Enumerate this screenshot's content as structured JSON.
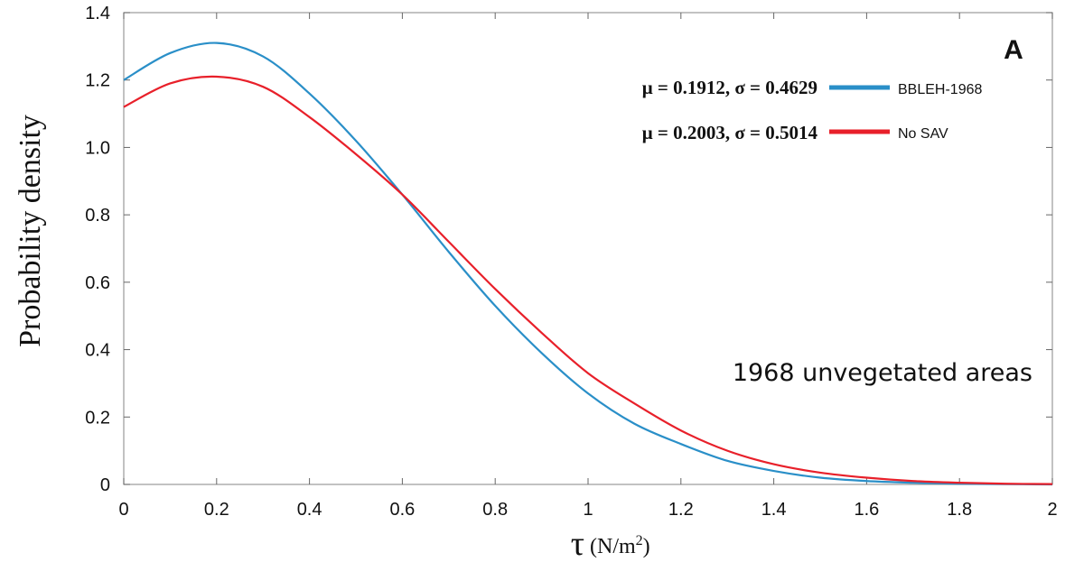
{
  "chart_data": {
    "type": "line",
    "panel_label": "A",
    "xlabel_symbol": "τ",
    "xlabel_unit": "(N/m2)",
    "ylabel": "Probability density",
    "annotation": "1968 unvegetated areas",
    "xlim": [
      0,
      2
    ],
    "ylim": [
      0,
      1.4
    ],
    "xticks": [
      "0",
      "0.2",
      "0.4",
      "0.6",
      "0.8",
      "1",
      "1.2",
      "1.4",
      "1.6",
      "1.8",
      "2"
    ],
    "yticks": [
      "0",
      "0.2",
      "0.4",
      "0.6",
      "0.8",
      "1.0",
      "1.2",
      "1.4"
    ],
    "grid": false,
    "legend_position": "top-right",
    "series": [
      {
        "name": "BBLEH-1968",
        "stats": "μ = 0.1912, σ = 0.4629",
        "color": "#2a8fc8",
        "x": [
          0,
          0.1,
          0.2,
          0.3,
          0.4,
          0.5,
          0.6,
          0.7,
          0.8,
          0.9,
          1.0,
          1.1,
          1.2,
          1.3,
          1.4,
          1.5,
          1.6,
          1.7,
          1.8,
          1.9,
          2.0
        ],
        "y": [
          1.2,
          1.28,
          1.31,
          1.27,
          1.16,
          1.02,
          0.86,
          0.69,
          0.53,
          0.39,
          0.27,
          0.18,
          0.12,
          0.07,
          0.04,
          0.02,
          0.01,
          0.005,
          0.002,
          0.001,
          0.0
        ]
      },
      {
        "name": "No SAV",
        "stats": "μ = 0.2003, σ = 0.5014",
        "color": "#e8202a",
        "x": [
          0,
          0.1,
          0.2,
          0.3,
          0.4,
          0.5,
          0.6,
          0.7,
          0.8,
          0.9,
          1.0,
          1.1,
          1.2,
          1.3,
          1.4,
          1.5,
          1.6,
          1.7,
          1.8,
          1.9,
          2.0
        ],
        "y": [
          1.12,
          1.19,
          1.21,
          1.18,
          1.09,
          0.98,
          0.86,
          0.72,
          0.58,
          0.45,
          0.33,
          0.24,
          0.16,
          0.1,
          0.06,
          0.035,
          0.02,
          0.01,
          0.005,
          0.002,
          0.001
        ]
      }
    ]
  }
}
